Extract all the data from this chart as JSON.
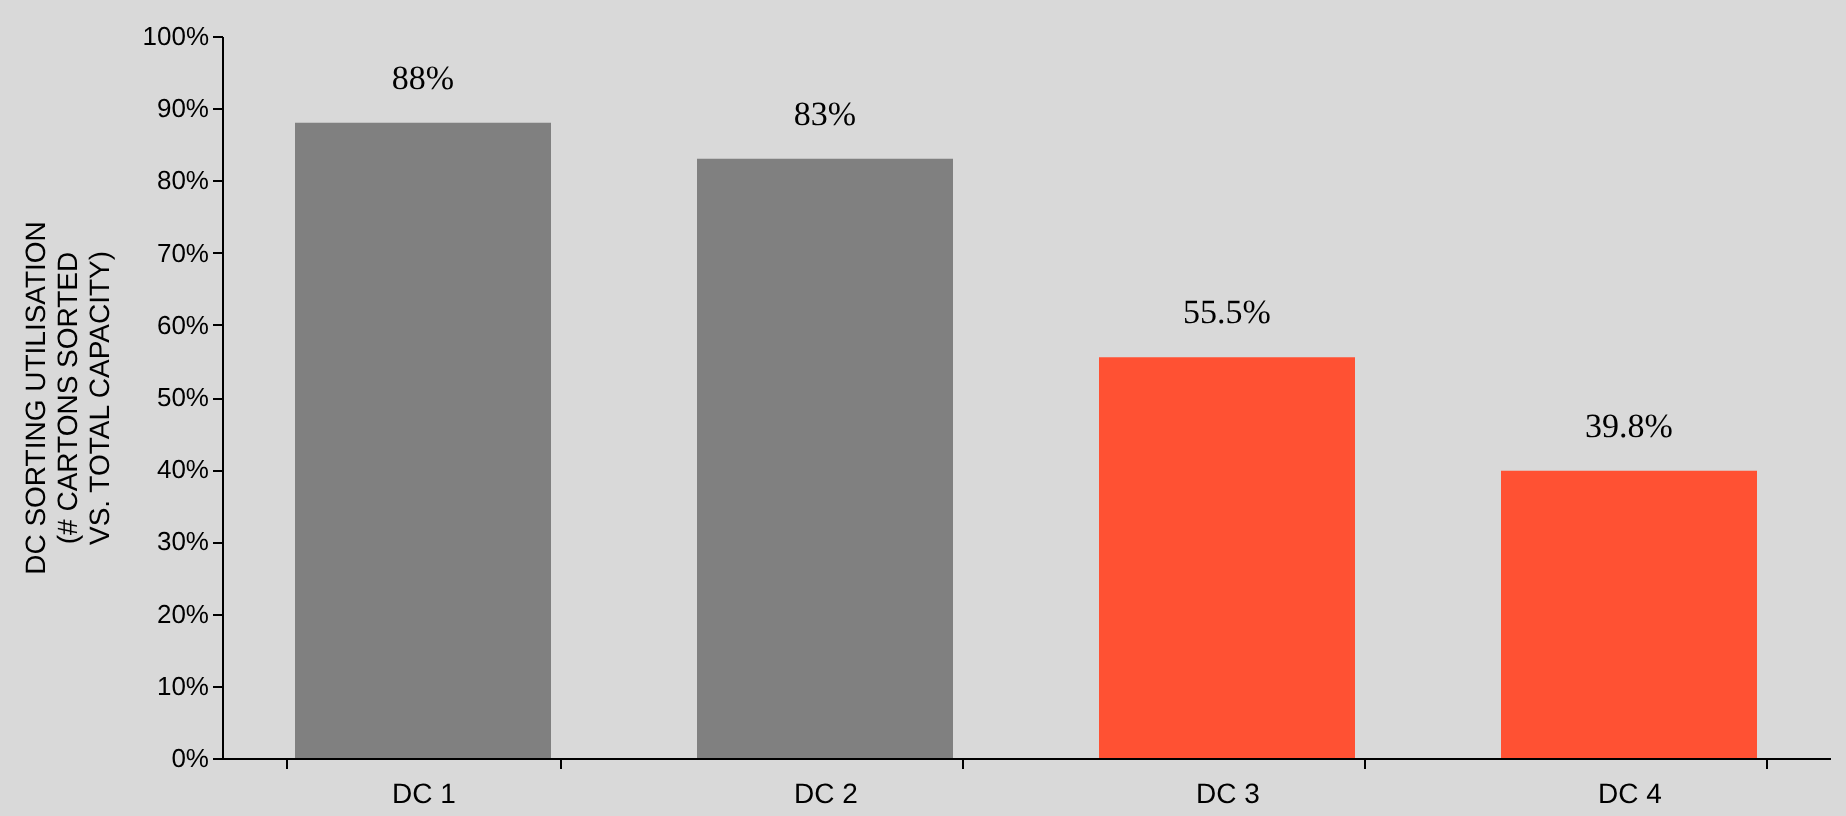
{
  "chart_data": {
    "type": "bar",
    "ylabel": "DC SORTING UTILISATION\n(# CARTONS SORTED\nVS. TOTAL CAPACITY)",
    "categories": [
      "DC 1",
      "DC 2",
      "DC 3",
      "DC 4"
    ],
    "values": [
      88,
      83,
      55.5,
      39.8
    ],
    "colors": [
      "#808080",
      "#808080",
      "#ff5133",
      "#ff5133"
    ],
    "value_labels": [
      "88%",
      "83%",
      "55.5%",
      "39.8%"
    ],
    "ylim": [
      0,
      100
    ],
    "yticks": [
      {
        "value": 0,
        "label": "0%"
      },
      {
        "value": 10,
        "label": "10%"
      },
      {
        "value": 20,
        "label": "20%"
      },
      {
        "value": 30,
        "label": "30%"
      },
      {
        "value": 40,
        "label": "40%"
      },
      {
        "value": 50,
        "label": "50%"
      },
      {
        "value": 60,
        "label": "60%"
      },
      {
        "value": 70,
        "label": "70%"
      },
      {
        "value": 80,
        "label": "80%"
      },
      {
        "value": 90,
        "label": "90%"
      },
      {
        "value": 100,
        "label": "100%"
      }
    ]
  }
}
